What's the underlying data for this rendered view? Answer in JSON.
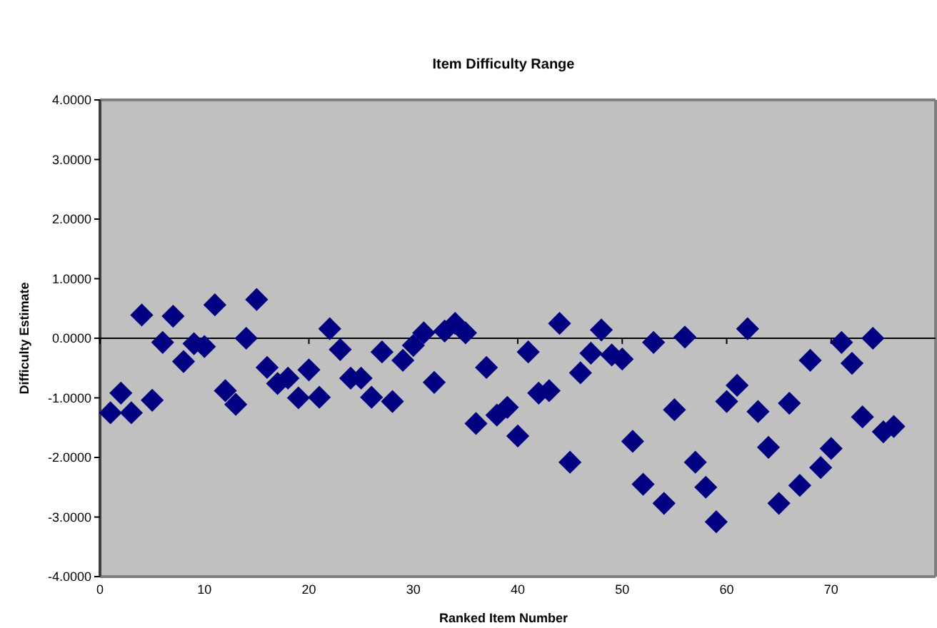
{
  "chart_data": {
    "type": "scatter",
    "title": "Item Difficulty Range",
    "xlabel": "Ranked Item Number",
    "ylabel": "Difficulty Estimate",
    "x": [
      1,
      2,
      3,
      4,
      5,
      6,
      7,
      8,
      9,
      10,
      11,
      12,
      13,
      14,
      15,
      16,
      17,
      18,
      19,
      20,
      21,
      22,
      23,
      24,
      25,
      26,
      27,
      28,
      29,
      30,
      31,
      32,
      33,
      34,
      35,
      36,
      37,
      38,
      39,
      40,
      41,
      42,
      43,
      44,
      45,
      46,
      47,
      48,
      49,
      50,
      51,
      52,
      53,
      54,
      55,
      56,
      57,
      58,
      59,
      60,
      61,
      62,
      63,
      64,
      65,
      66,
      67,
      68,
      69,
      70,
      71,
      72,
      73,
      74,
      75,
      76
    ],
    "series": [
      {
        "color": "#000080",
        "values": [
          -1.25,
          -0.92,
          -1.25,
          0.39,
          -1.04,
          -0.07,
          0.37,
          -0.39,
          -0.09,
          -0.14,
          0.56,
          -0.88,
          -1.11,
          0.0,
          0.65,
          -0.49,
          -0.76,
          -0.67,
          -1.0,
          -0.53,
          -0.99,
          0.16,
          -0.19,
          -0.67,
          -0.67,
          -0.99,
          -0.23,
          -1.06,
          -0.37,
          -0.12,
          0.09,
          -0.74,
          0.12,
          0.25,
          0.09,
          -1.43,
          -0.49,
          -1.29,
          -1.16,
          -1.64,
          -0.23,
          -0.92,
          -0.88,
          0.25,
          -2.08,
          -0.58,
          -0.25,
          0.14,
          -0.28,
          -0.35,
          -1.73,
          -2.45,
          -0.07,
          -2.77,
          -1.2,
          0.02,
          -2.08,
          -2.5,
          -3.08,
          -1.06,
          -0.79,
          0.16,
          -1.23,
          -1.83,
          -2.77,
          -1.09,
          -2.47,
          -0.37,
          -2.17,
          -1.85,
          -0.07,
          -0.42,
          -1.32,
          0.0,
          -1.57,
          -1.48
        ]
      }
    ],
    "xlim": [
      0,
      80
    ],
    "xticks": [
      0,
      10,
      20,
      30,
      40,
      50,
      60,
      70
    ],
    "ylim": [
      -4,
      4
    ],
    "yticks": [
      {
        "value": -4,
        "label": "-4.0000"
      },
      {
        "value": -3,
        "label": "-3.0000"
      },
      {
        "value": -2,
        "label": "-2.0000"
      },
      {
        "value": -1,
        "label": "-1.0000"
      },
      {
        "value": 0,
        "label": "0.0000"
      },
      {
        "value": 1,
        "label": "1.0000"
      },
      {
        "value": 2,
        "label": "2.0000"
      },
      {
        "value": 3,
        "label": "3.0000"
      },
      {
        "value": 4,
        "label": "4.0000"
      }
    ],
    "marker": "diamond"
  }
}
